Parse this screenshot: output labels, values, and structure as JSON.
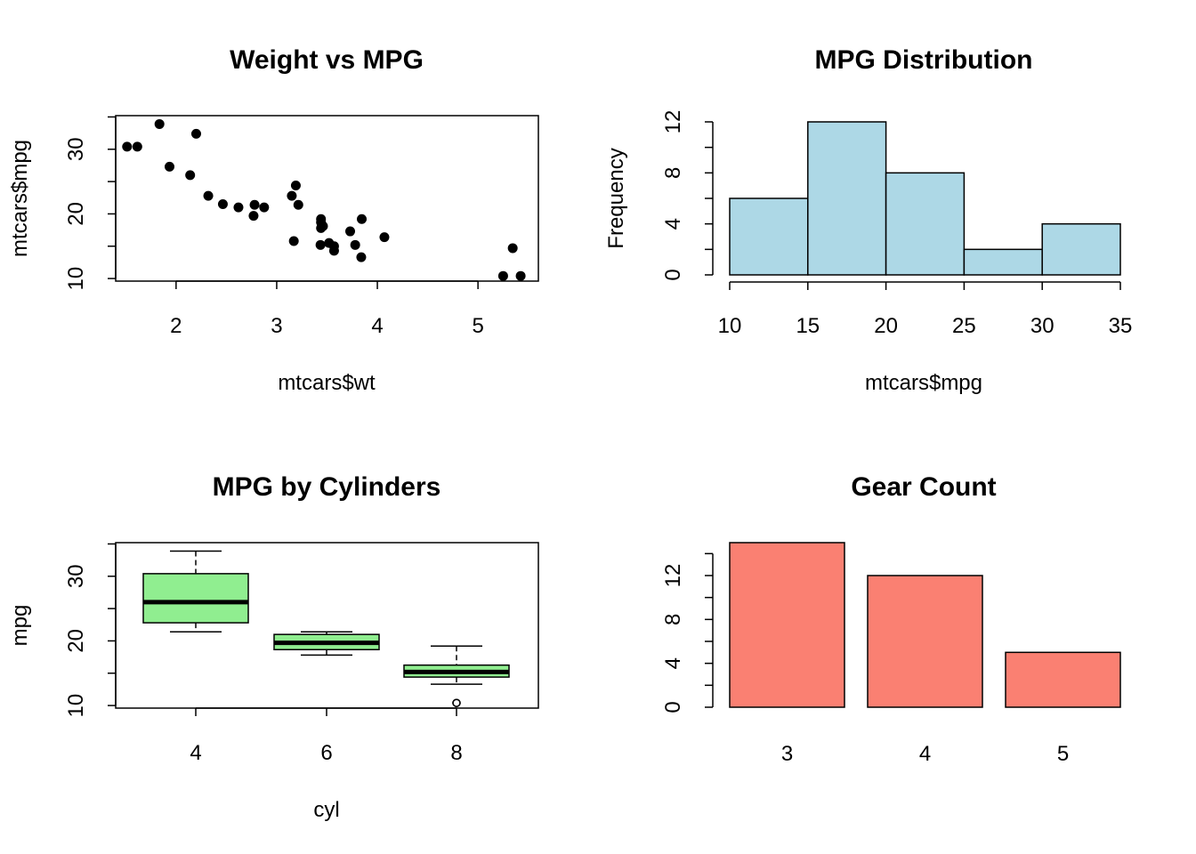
{
  "chart_data": [
    {
      "type": "scatter",
      "title": "Weight vs MPG",
      "xlabel": "mtcars$wt",
      "ylabel": "mtcars$mpg",
      "xlim": [
        1.4,
        5.6
      ],
      "ylim": [
        9.6,
        35.2
      ],
      "xticks": [
        "2",
        "3",
        "4",
        "5"
      ],
      "yticks": [
        "10",
        "20",
        "30"
      ],
      "marker": "filled-circle",
      "color": "#000000",
      "points": [
        {
          "x": 2.62,
          "y": 21.0
        },
        {
          "x": 2.875,
          "y": 21.0
        },
        {
          "x": 2.32,
          "y": 22.8
        },
        {
          "x": 3.215,
          "y": 21.4
        },
        {
          "x": 3.44,
          "y": 18.7
        },
        {
          "x": 3.46,
          "y": 18.1
        },
        {
          "x": 3.57,
          "y": 14.3
        },
        {
          "x": 3.19,
          "y": 24.4
        },
        {
          "x": 3.15,
          "y": 22.8
        },
        {
          "x": 3.44,
          "y": 19.2
        },
        {
          "x": 3.44,
          "y": 17.8
        },
        {
          "x": 4.07,
          "y": 16.4
        },
        {
          "x": 3.73,
          "y": 17.3
        },
        {
          "x": 3.78,
          "y": 15.2
        },
        {
          "x": 5.25,
          "y": 10.4
        },
        {
          "x": 5.424,
          "y": 10.4
        },
        {
          "x": 5.345,
          "y": 14.7
        },
        {
          "x": 2.2,
          "y": 32.4
        },
        {
          "x": 1.615,
          "y": 30.4
        },
        {
          "x": 1.835,
          "y": 33.9
        },
        {
          "x": 2.465,
          "y": 21.5
        },
        {
          "x": 3.52,
          "y": 15.5
        },
        {
          "x": 3.435,
          "y": 15.2
        },
        {
          "x": 3.84,
          "y": 13.3
        },
        {
          "x": 3.845,
          "y": 19.2
        },
        {
          "x": 1.935,
          "y": 27.3
        },
        {
          "x": 2.14,
          "y": 26.0
        },
        {
          "x": 1.513,
          "y": 30.4
        },
        {
          "x": 3.17,
          "y": 15.8
        },
        {
          "x": 2.77,
          "y": 19.7
        },
        {
          "x": 3.57,
          "y": 15.0
        },
        {
          "x": 2.78,
          "y": 21.4
        }
      ]
    },
    {
      "type": "bar",
      "subtype": "histogram",
      "title": "MPG Distribution",
      "xlabel": "mtcars$mpg",
      "ylabel": "Frequency",
      "bins": [
        {
          "from": 10,
          "to": 15,
          "count": 6
        },
        {
          "from": 15,
          "to": 20,
          "count": 12
        },
        {
          "from": 20,
          "to": 25,
          "count": 8
        },
        {
          "from": 25,
          "to": 30,
          "count": 2
        },
        {
          "from": 30,
          "to": 35,
          "count": 4
        }
      ],
      "xticks": [
        "10",
        "15",
        "20",
        "25",
        "30",
        "35"
      ],
      "yticks": [
        "0",
        "4",
        "8",
        "12"
      ],
      "ylim": [
        0,
        12
      ],
      "fill": "#ADD8E6"
    },
    {
      "type": "boxplot",
      "title": "MPG by Cylinders",
      "xlabel": "cyl",
      "ylabel": "mpg",
      "ylim": [
        9.6,
        35.2
      ],
      "yticks": [
        "10",
        "20",
        "30"
      ],
      "fill": "#90EE90",
      "groups": [
        {
          "label": "4",
          "whisker_low": 21.4,
          "q1": 22.8,
          "median": 26.0,
          "q3": 30.4,
          "whisker_high": 33.9,
          "outliers": []
        },
        {
          "label": "6",
          "whisker_low": 17.8,
          "q1": 18.65,
          "median": 19.7,
          "q3": 21.0,
          "whisker_high": 21.4,
          "outliers": []
        },
        {
          "label": "8",
          "whisker_low": 13.3,
          "q1": 14.4,
          "median": 15.2,
          "q3": 16.25,
          "whisker_high": 19.2,
          "outliers": [
            10.4,
            10.4
          ]
        }
      ]
    },
    {
      "type": "bar",
      "title": "Gear Count",
      "categories": [
        "3",
        "4",
        "5"
      ],
      "values": [
        15,
        12,
        5
      ],
      "yticks": [
        "0",
        "4",
        "8",
        "12"
      ],
      "ylim": [
        0,
        15
      ],
      "fill": "#FA8072"
    }
  ]
}
